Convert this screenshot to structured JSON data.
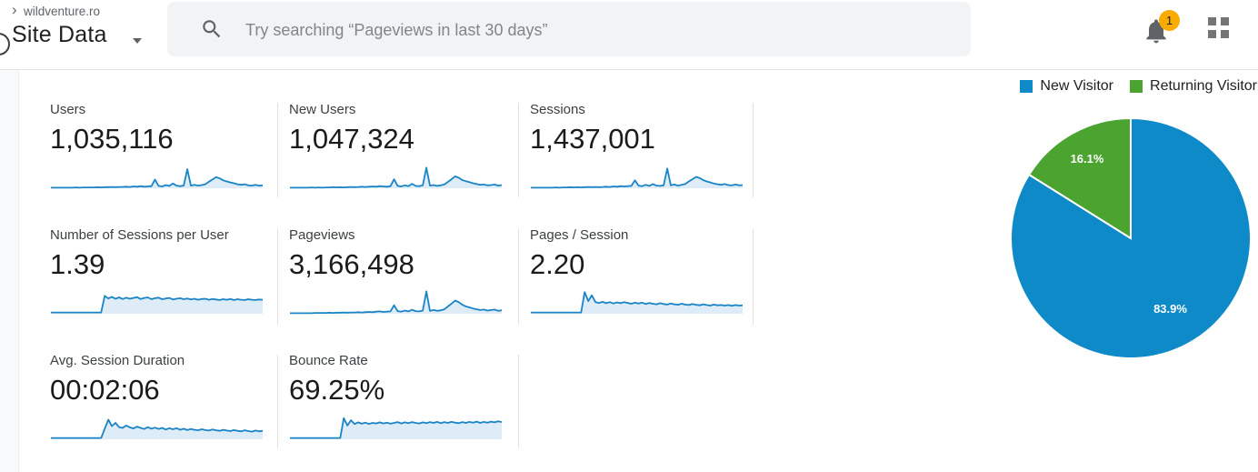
{
  "header": {
    "breadcrumb_separator": "›",
    "breadcrumb": "wildventure.ro",
    "view_title": "Site Data",
    "search_placeholder": "Try searching “Pageviews in last 30 days”",
    "notification_count": "1"
  },
  "colors": {
    "spark_line": "#1b84c6",
    "spark_fill": "#ddecf7",
    "pie_blue": "#0e8ac8",
    "pie_green": "#4ba42f",
    "badge_yellow": "#f9ab00",
    "divider_gray": "#dfe1e5"
  },
  "legend": {
    "items": [
      {
        "label": "New Visitor",
        "color": "#0e8ac8"
      },
      {
        "label": "Returning Visitor",
        "color": "#4ba42f"
      }
    ]
  },
  "cards": [
    {
      "id": "users",
      "label": "Users",
      "value": "1,035,116",
      "spark": [
        0.02,
        0.02,
        0.02,
        0.02,
        0.02,
        0.02,
        0.02,
        0.03,
        0.02,
        0.03,
        0.03,
        0.03,
        0.03,
        0.04,
        0.03,
        0.04,
        0.04,
        0.05,
        0.04,
        0.05,
        0.05,
        0.06,
        0.05,
        0.07,
        0.06,
        0.08,
        0.06,
        0.07,
        0.08,
        0.33,
        0.09,
        0.07,
        0.12,
        0.09,
        0.18,
        0.1,
        0.08,
        0.1,
        0.72,
        0.1,
        0.13,
        0.1,
        0.12,
        0.15,
        0.25,
        0.33,
        0.42,
        0.38,
        0.3,
        0.26,
        0.22,
        0.19,
        0.15,
        0.13,
        0.15,
        0.11,
        0.1,
        0.13,
        0.1,
        0.11
      ]
    },
    {
      "id": "new-users",
      "label": "New Users",
      "value": "1,047,324",
      "spark": [
        0.02,
        0.02,
        0.02,
        0.02,
        0.02,
        0.02,
        0.03,
        0.02,
        0.03,
        0.02,
        0.03,
        0.03,
        0.04,
        0.03,
        0.04,
        0.03,
        0.04,
        0.05,
        0.04,
        0.05,
        0.06,
        0.05,
        0.06,
        0.07,
        0.06,
        0.08,
        0.07,
        0.06,
        0.08,
        0.34,
        0.09,
        0.07,
        0.11,
        0.08,
        0.17,
        0.09,
        0.08,
        0.11,
        0.78,
        0.1,
        0.12,
        0.09,
        0.11,
        0.14,
        0.24,
        0.34,
        0.45,
        0.4,
        0.31,
        0.27,
        0.23,
        0.19,
        0.16,
        0.13,
        0.14,
        0.11,
        0.12,
        0.14,
        0.1,
        0.12
      ]
    },
    {
      "id": "sessions",
      "label": "Sessions",
      "value": "1,437,001",
      "spark": [
        0.02,
        0.02,
        0.02,
        0.02,
        0.02,
        0.02,
        0.02,
        0.03,
        0.02,
        0.03,
        0.03,
        0.04,
        0.03,
        0.04,
        0.03,
        0.04,
        0.05,
        0.04,
        0.05,
        0.04,
        0.05,
        0.06,
        0.05,
        0.07,
        0.06,
        0.08,
        0.07,
        0.08,
        0.09,
        0.3,
        0.1,
        0.08,
        0.13,
        0.09,
        0.16,
        0.1,
        0.09,
        0.11,
        0.75,
        0.11,
        0.14,
        0.1,
        0.13,
        0.16,
        0.26,
        0.34,
        0.43,
        0.39,
        0.31,
        0.26,
        0.22,
        0.18,
        0.15,
        0.13,
        0.16,
        0.12,
        0.11,
        0.14,
        0.11,
        0.12
      ]
    },
    {
      "id": "sessions-per-user",
      "label": "Number of Sessions per User",
      "value": "1.39",
      "spark": [
        0.05,
        0.05,
        0.05,
        0.05,
        0.05,
        0.05,
        0.05,
        0.05,
        0.05,
        0.05,
        0.05,
        0.05,
        0.05,
        0.05,
        0.05,
        0.68,
        0.58,
        0.64,
        0.57,
        0.62,
        0.56,
        0.61,
        0.57,
        0.6,
        0.63,
        0.56,
        0.6,
        0.62,
        0.55,
        0.59,
        0.61,
        0.55,
        0.58,
        0.6,
        0.54,
        0.57,
        0.59,
        0.55,
        0.58,
        0.54,
        0.57,
        0.53,
        0.56,
        0.57,
        0.53,
        0.56,
        0.54,
        0.52,
        0.55,
        0.53,
        0.56,
        0.52,
        0.55,
        0.53,
        0.52,
        0.55,
        0.53,
        0.52,
        0.54,
        0.53
      ]
    },
    {
      "id": "pageviews",
      "label": "Pageviews",
      "value": "3,166,498",
      "spark": [
        0.02,
        0.02,
        0.02,
        0.02,
        0.02,
        0.02,
        0.02,
        0.03,
        0.03,
        0.03,
        0.03,
        0.04,
        0.03,
        0.04,
        0.04,
        0.05,
        0.04,
        0.05,
        0.05,
        0.06,
        0.05,
        0.06,
        0.07,
        0.06,
        0.08,
        0.09,
        0.07,
        0.08,
        0.09,
        0.32,
        0.1,
        0.08,
        0.12,
        0.09,
        0.15,
        0.1,
        0.09,
        0.12,
        0.85,
        0.11,
        0.14,
        0.11,
        0.13,
        0.17,
        0.28,
        0.38,
        0.5,
        0.44,
        0.34,
        0.28,
        0.24,
        0.2,
        0.17,
        0.14,
        0.16,
        0.12,
        0.14,
        0.16,
        0.11,
        0.13
      ]
    },
    {
      "id": "pages-per-session",
      "label": "Pages / Session",
      "value": "2.20",
      "spark": [
        0.05,
        0.05,
        0.05,
        0.05,
        0.05,
        0.05,
        0.05,
        0.05,
        0.05,
        0.05,
        0.05,
        0.05,
        0.05,
        0.05,
        0.05,
        0.82,
        0.48,
        0.7,
        0.44,
        0.41,
        0.45,
        0.4,
        0.44,
        0.39,
        0.43,
        0.4,
        0.44,
        0.41,
        0.38,
        0.42,
        0.39,
        0.42,
        0.37,
        0.41,
        0.38,
        0.36,
        0.4,
        0.37,
        0.35,
        0.39,
        0.36,
        0.34,
        0.38,
        0.35,
        0.33,
        0.37,
        0.34,
        0.32,
        0.36,
        0.33,
        0.31,
        0.35,
        0.32,
        0.33,
        0.31,
        0.33,
        0.3,
        0.33,
        0.31,
        0.32
      ]
    },
    {
      "id": "avg-session-duration",
      "label": "Avg. Session Duration",
      "value": "00:02:06",
      "spark": [
        0.05,
        0.05,
        0.05,
        0.05,
        0.05,
        0.05,
        0.05,
        0.05,
        0.05,
        0.05,
        0.05,
        0.05,
        0.05,
        0.05,
        0.05,
        0.4,
        0.74,
        0.5,
        0.62,
        0.46,
        0.43,
        0.52,
        0.45,
        0.41,
        0.48,
        0.43,
        0.39,
        0.46,
        0.4,
        0.44,
        0.39,
        0.43,
        0.37,
        0.42,
        0.38,
        0.42,
        0.36,
        0.4,
        0.35,
        0.39,
        0.36,
        0.34,
        0.38,
        0.35,
        0.33,
        0.37,
        0.34,
        0.32,
        0.36,
        0.33,
        0.31,
        0.35,
        0.32,
        0.3,
        0.34,
        0.31,
        0.29,
        0.33,
        0.3,
        0.32
      ]
    },
    {
      "id": "bounce-rate",
      "label": "Bounce Rate",
      "value": "69.25%",
      "spark": [
        0.05,
        0.05,
        0.05,
        0.05,
        0.05,
        0.05,
        0.05,
        0.05,
        0.05,
        0.05,
        0.05,
        0.05,
        0.05,
        0.05,
        0.05,
        0.8,
        0.52,
        0.72,
        0.58,
        0.64,
        0.59,
        0.63,
        0.58,
        0.62,
        0.6,
        0.64,
        0.6,
        0.63,
        0.59,
        0.62,
        0.65,
        0.6,
        0.64,
        0.61,
        0.65,
        0.62,
        0.6,
        0.64,
        0.61,
        0.65,
        0.62,
        0.66,
        0.61,
        0.65,
        0.62,
        0.66,
        0.63,
        0.61,
        0.65,
        0.62,
        0.66,
        0.63,
        0.67,
        0.62,
        0.66,
        0.63,
        0.67,
        0.64,
        0.68,
        0.65
      ]
    }
  ],
  "chart_data": {
    "type": "pie",
    "labels": [
      "New Visitor",
      "Returning Visitor"
    ],
    "values": [
      83.9,
      16.1
    ],
    "slice_labels": [
      "83.9%",
      "16.1%"
    ],
    "colors": [
      "#0e8ac8",
      "#4ba42f"
    ],
    "start_angle_deg": 0,
    "direction": "clockwise",
    "legend_position": "top-right"
  }
}
